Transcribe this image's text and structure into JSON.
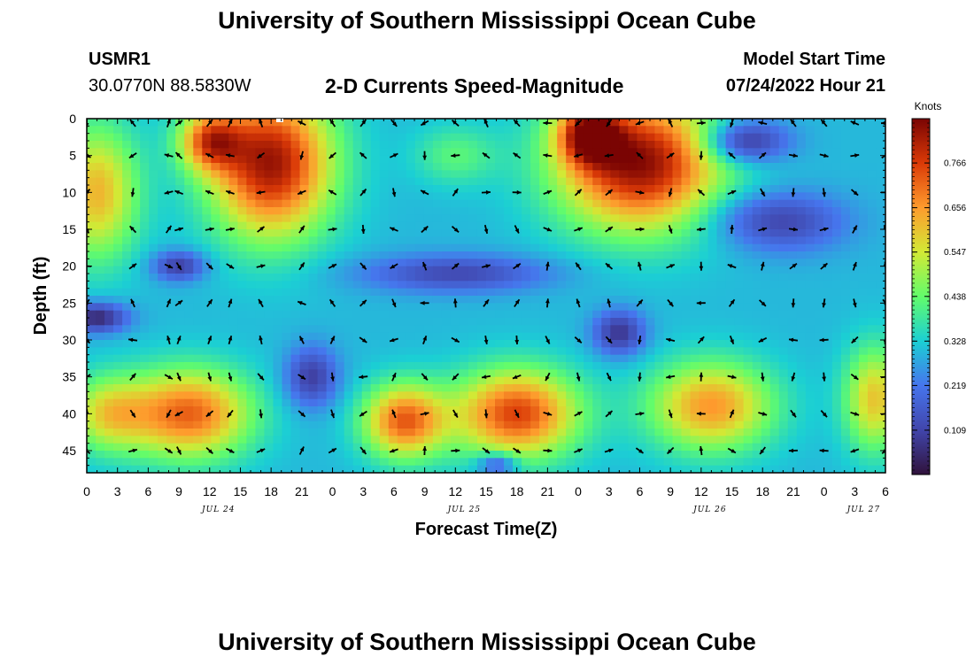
{
  "header": {
    "title": "University of Southern Mississippi Ocean Cube",
    "station_id": "USMR1",
    "coordinates": "30.0770N  88.5830W",
    "subtitle": "2-D Currents Speed-Magnitude",
    "model_start_label": "Model Start Time",
    "model_start_value": "07/24/2022 Hour 21"
  },
  "footer": {
    "title": "University of Southern Mississippi Ocean Cube"
  },
  "chart_data": {
    "type": "heatmap",
    "title": "2-D Currents Speed-Magnitude",
    "xlabel": "Forecast Time(Z)",
    "ylabel": "Depth (ft)",
    "x_tick_labels": [
      "0",
      "3",
      "6",
      "9",
      "12",
      "15",
      "18",
      "21",
      "0",
      "3",
      "6",
      "9",
      "12",
      "15",
      "18",
      "21",
      "0",
      "3",
      "6",
      "9",
      "12",
      "15",
      "18",
      "21",
      "0",
      "3",
      "6"
    ],
    "x_range_hours": [
      0,
      78
    ],
    "date_labels": [
      {
        "label": "JUL 24",
        "hour": 12
      },
      {
        "label": "JUL 25",
        "hour": 36
      },
      {
        "label": "JUL 26",
        "hour": 60
      },
      {
        "label": "JUL 27",
        "hour": 75
      }
    ],
    "y_tick_labels": [
      "0",
      "5",
      "10",
      "15",
      "20",
      "25",
      "30",
      "35",
      "40",
      "45"
    ],
    "y_range_ft": [
      0,
      48
    ],
    "colorbar": {
      "title": "Knots",
      "tick_labels": [
        "0.766",
        "0.656",
        "0.547",
        "0.438",
        "0.328",
        "0.219",
        "0.109"
      ],
      "tick_values": [
        0.766,
        0.656,
        0.547,
        0.438,
        0.328,
        0.219,
        0.109
      ],
      "range": [
        0.0,
        0.875
      ]
    },
    "speed_blobs": [
      {
        "t": 1,
        "d": 10,
        "sx": 4,
        "sy": 9,
        "v": 0.62
      },
      {
        "t": 18,
        "d": 6,
        "sx": 6,
        "sy": 10,
        "v": 0.84
      },
      {
        "t": 12,
        "d": 3,
        "sx": 3,
        "sy": 4,
        "v": 0.65
      },
      {
        "t": 54,
        "d": 6,
        "sx": 8,
        "sy": 9,
        "v": 0.86
      },
      {
        "t": 49,
        "d": 2,
        "sx": 3,
        "sy": 4,
        "v": 0.7
      },
      {
        "t": 10,
        "d": 40,
        "sx": 6,
        "sy": 6,
        "v": 0.72
      },
      {
        "t": 2,
        "d": 40,
        "sx": 4,
        "sy": 5,
        "v": 0.55
      },
      {
        "t": 31,
        "d": 41,
        "sx": 4,
        "sy": 5,
        "v": 0.72
      },
      {
        "t": 42,
        "d": 40,
        "sx": 6,
        "sy": 6,
        "v": 0.76
      },
      {
        "t": 61,
        "d": 39,
        "sx": 6,
        "sy": 6,
        "v": 0.66
      },
      {
        "t": 77,
        "d": 38,
        "sx": 3,
        "sy": 7,
        "v": 0.6
      },
      {
        "t": 36,
        "d": 5,
        "sx": 4,
        "sy": 4,
        "v": 0.42
      }
    ],
    "slow_blobs": [
      {
        "t": 9,
        "d": 20,
        "sx": 2.5,
        "sy": 2,
        "v": 0.1
      },
      {
        "t": 1,
        "d": 27,
        "sx": 3,
        "sy": 2,
        "v": 0.05
      },
      {
        "t": 22,
        "d": 35,
        "sx": 2.5,
        "sy": 4,
        "v": 0.1
      },
      {
        "t": 36,
        "d": 21,
        "sx": 9,
        "sy": 2.5,
        "v": 0.12
      },
      {
        "t": 52,
        "d": 29,
        "sx": 2.5,
        "sy": 3,
        "v": 0.08
      },
      {
        "t": 68,
        "d": 14,
        "sx": 6,
        "sy": 4,
        "v": 0.12
      },
      {
        "t": 65,
        "d": 3,
        "sx": 4,
        "sy": 3,
        "v": 0.12
      },
      {
        "t": 40,
        "d": 47,
        "sx": 2,
        "sy": 1.5,
        "v": 0.2
      }
    ],
    "arrow_times_hours": [
      0,
      4.5,
      8,
      9,
      12,
      14,
      17,
      21,
      24,
      27,
      30,
      33,
      36,
      39,
      42,
      45,
      48,
      51,
      54,
      57,
      60,
      63,
      66,
      69,
      72,
      75,
      78
    ],
    "arrow_depths_ft": [
      0,
      5,
      10,
      15,
      20,
      25,
      30,
      35,
      40,
      45
    ]
  }
}
